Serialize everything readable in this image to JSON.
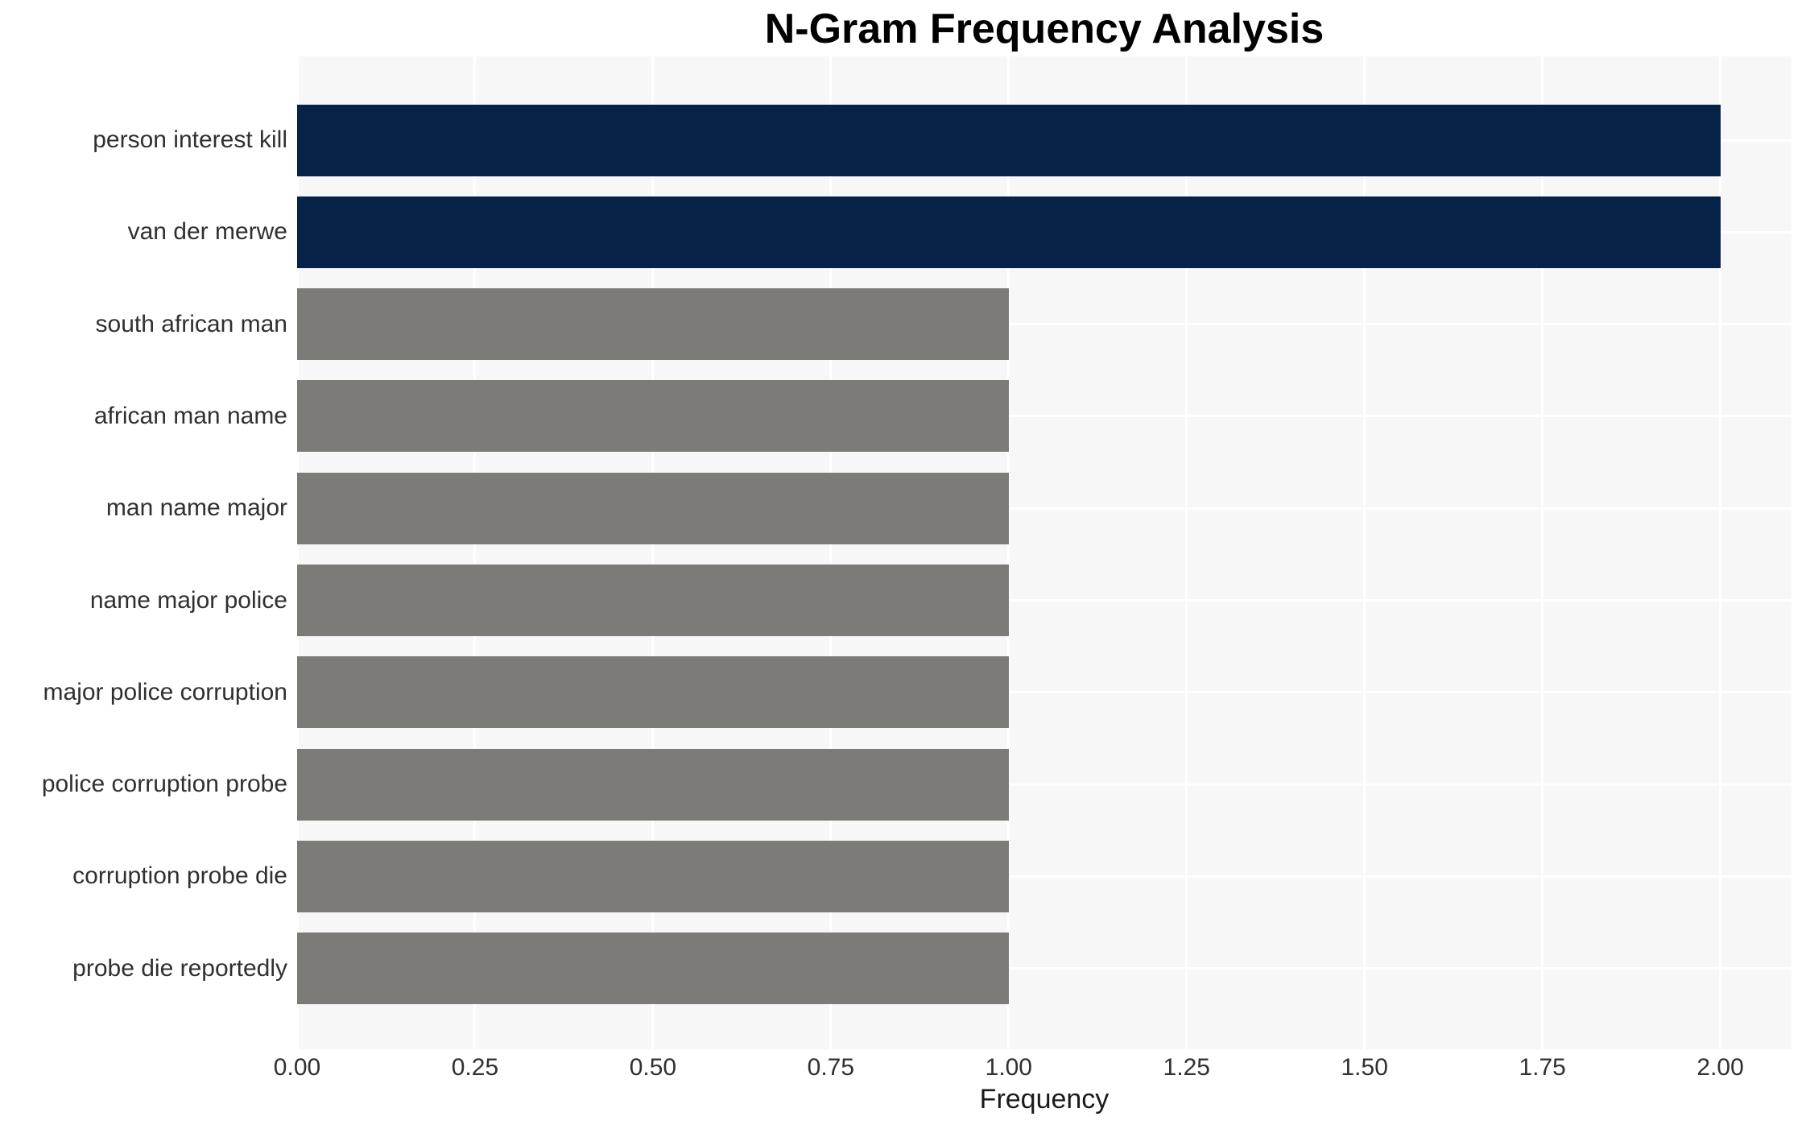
{
  "chart_data": {
    "type": "bar",
    "orientation": "horizontal",
    "title": "N-Gram Frequency Analysis",
    "xlabel": "Frequency",
    "ylabel": "",
    "categories": [
      "person interest kill",
      "van der merwe",
      "south african man",
      "african man name",
      "man name major",
      "name major police",
      "major police corruption",
      "police corruption probe",
      "corruption probe die",
      "probe die reportedly"
    ],
    "values": [
      2,
      2,
      1,
      1,
      1,
      1,
      1,
      1,
      1,
      1
    ],
    "bar_colors": [
      "#062248",
      "#062248",
      "#7c7b77",
      "#7c7b77",
      "#7c7b77",
      "#7c7b77",
      "#7c7b77",
      "#7c7b77",
      "#7c7b77",
      "#7c7b77"
    ],
    "xlim": [
      0,
      2.1
    ],
    "xticks": [
      0,
      0.25,
      0.5,
      0.75,
      1.0,
      1.25,
      1.5,
      1.75,
      2.0
    ],
    "xtick_labels": [
      "0.00",
      "0.25",
      "0.50",
      "0.75",
      "1.00",
      "1.25",
      "1.50",
      "1.75",
      "2.00"
    ],
    "grid": true,
    "legend": "none",
    "colors": {
      "bar_highlight": "#062248",
      "bar_default": "#7c7b77",
      "plot_background": "#f7f7f8",
      "figure_background": "#ffffff",
      "gridline": "#ffffff",
      "title_text": "#000000",
      "tick_text": "#303030"
    }
  }
}
